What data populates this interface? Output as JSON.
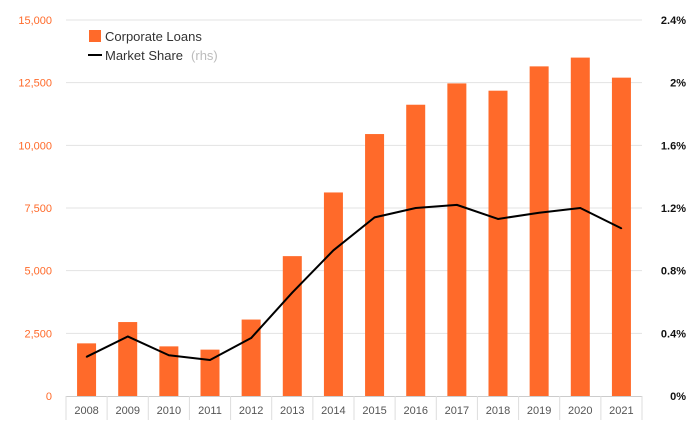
{
  "chart_data": {
    "type": "bar",
    "categories": [
      "2008",
      "2009",
      "2010",
      "2011",
      "2012",
      "2013",
      "2014",
      "2015",
      "2016",
      "2017",
      "2018",
      "2019",
      "2020",
      "2021"
    ],
    "series": [
      {
        "name": "Corporate Loans",
        "kind": "bar",
        "axis": "left",
        "color": "#ff6a2a",
        "values": [
          2100,
          2950,
          1980,
          1850,
          3050,
          5580,
          8120,
          10450,
          11620,
          12470,
          12180,
          13150,
          13500,
          12700
        ]
      },
      {
        "name": "Market Share",
        "kind": "line",
        "axis": "right",
        "color": "#000000",
        "values": [
          0.25,
          0.38,
          0.26,
          0.23,
          0.37,
          0.66,
          0.93,
          1.14,
          1.2,
          1.22,
          1.13,
          1.17,
          1.2,
          1.07
        ]
      }
    ],
    "legend": {
      "position": "top-left",
      "items": [
        {
          "label": "Corporate Loans",
          "note": ""
        },
        {
          "label": "Market Share",
          "note": "(rhs)"
        }
      ]
    },
    "y_left": {
      "lim": [
        0,
        15000
      ],
      "ticks": [
        0,
        2500,
        5000,
        7500,
        10000,
        12500,
        15000
      ],
      "tick_labels": [
        "0",
        "2,500",
        "5,000",
        "7,500",
        "10,000",
        "12,500",
        "15,000"
      ]
    },
    "y_right": {
      "lim": [
        0,
        2.4
      ],
      "ticks": [
        0,
        0.4,
        0.8,
        1.2,
        1.6,
        2.0,
        2.4
      ],
      "tick_labels": [
        "0%",
        "0.4%",
        "0.8%",
        "1.2%",
        "1.6%",
        "2%",
        "2.4%"
      ]
    },
    "grid": true
  }
}
